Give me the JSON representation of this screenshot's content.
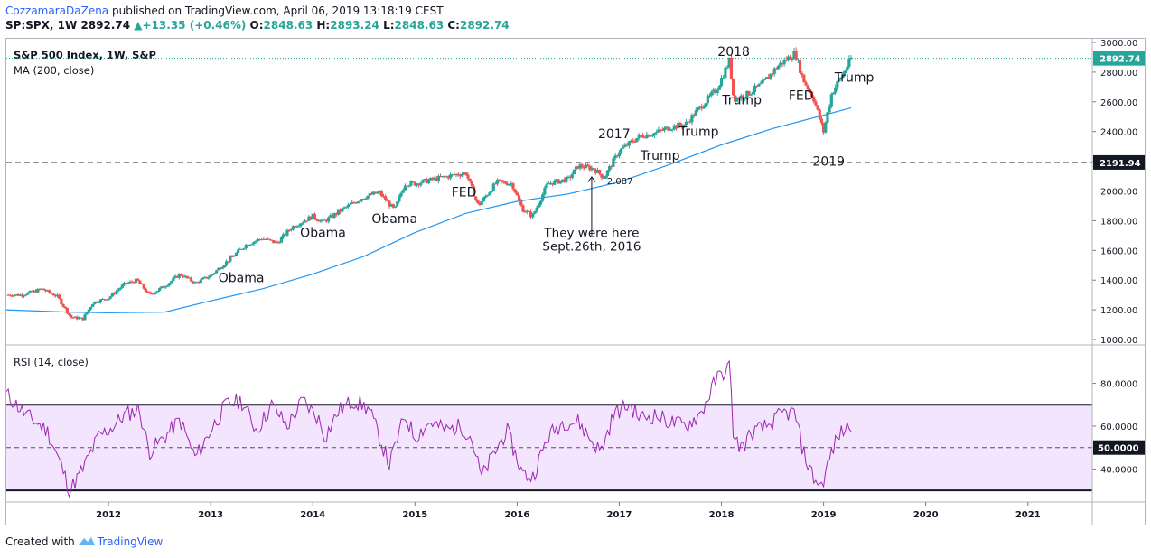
{
  "header": {
    "publisher": "CozzamaraDaZena",
    "published_text": "published on TradingView.com, April 06, 2019 13:18:19 CEST",
    "symbol": "SP:SPX, 1W",
    "last": "2892.74",
    "change_icon": "up-triangle-icon",
    "change": "+13.35 (+0.46%)",
    "o_label": "O:",
    "o": "2848.63",
    "h_label": "H:",
    "h": "2893.24",
    "l_label": "L:",
    "l": "2848.63",
    "c_label": "C:",
    "c": "2892.74"
  },
  "footer": {
    "created_with": "Created with",
    "brand": "TradingView",
    "logo_icon": "tradingview-logo-icon"
  },
  "colors": {
    "up": "#26a69a",
    "down": "#ef5350",
    "ma": "#2196f3",
    "rsi": "#9c27b0",
    "rsi_band": "#f3e5fd",
    "price_tag": "#26a69a",
    "line_tag": "#131722"
  },
  "chart_data": [
    {
      "type": "candlestick",
      "title": "S&P 500 Index, 1W, S&P",
      "indicator": "MA (200, close)",
      "ylim": [
        1000,
        3000
      ],
      "y_ticks": [
        "3000.00",
        "2800.00",
        "2600.00",
        "2400.00",
        "2200.00",
        "2000.00",
        "1800.00",
        "1600.00",
        "1400.00",
        "1200.00",
        "1000.00"
      ],
      "x_ticks": [
        "2012",
        "2013",
        "2014",
        "2015",
        "2016",
        "2017",
        "2018",
        "2019",
        "2020",
        "2021"
      ],
      "last_price_label": "2892.74",
      "horizontal_line_label": "2191.94",
      "close_series": [
        [
          2011.15,
          1300
        ],
        [
          2011.35,
          1340
        ],
        [
          2011.5,
          1290
        ],
        [
          2011.63,
          1150
        ],
        [
          2011.75,
          1140
        ],
        [
          2011.85,
          1250
        ],
        [
          2012.0,
          1280
        ],
        [
          2012.15,
          1370
        ],
        [
          2012.28,
          1400
        ],
        [
          2012.4,
          1300
        ],
        [
          2012.55,
          1360
        ],
        [
          2012.7,
          1440
        ],
        [
          2012.85,
          1380
        ],
        [
          2013.0,
          1430
        ],
        [
          2013.15,
          1520
        ],
        [
          2013.35,
          1640
        ],
        [
          2013.5,
          1680
        ],
        [
          2013.65,
          1650
        ],
        [
          2013.8,
          1760
        ],
        [
          2014.0,
          1830
        ],
        [
          2014.1,
          1790
        ],
        [
          2014.3,
          1880
        ],
        [
          2014.5,
          1960
        ],
        [
          2014.65,
          1990
        ],
        [
          2014.8,
          1870
        ],
        [
          2014.9,
          2050
        ],
        [
          2015.0,
          2050
        ],
        [
          2015.2,
          2080
        ],
        [
          2015.4,
          2110
        ],
        [
          2015.5,
          2120
        ],
        [
          2015.62,
          1900
        ],
        [
          2015.8,
          2060
        ],
        [
          2015.95,
          2050
        ],
        [
          2016.05,
          1880
        ],
        [
          2016.15,
          1830
        ],
        [
          2016.3,
          2050
        ],
        [
          2016.5,
          2080
        ],
        [
          2016.6,
          2170
        ],
        [
          2016.75,
          2150
        ],
        [
          2016.85,
          2090
        ],
        [
          2017.0,
          2270
        ],
        [
          2017.2,
          2370
        ],
        [
          2017.35,
          2390
        ],
        [
          2017.5,
          2430
        ],
        [
          2017.65,
          2450
        ],
        [
          2017.8,
          2570
        ],
        [
          2017.95,
          2680
        ],
        [
          2018.08,
          2880
        ],
        [
          2018.12,
          2620
        ],
        [
          2018.25,
          2650
        ],
        [
          2018.4,
          2720
        ],
        [
          2018.55,
          2840
        ],
        [
          2018.72,
          2930
        ],
        [
          2018.8,
          2750
        ],
        [
          2018.9,
          2630
        ],
        [
          2019.0,
          2400
        ],
        [
          2019.08,
          2660
        ],
        [
          2019.2,
          2800
        ],
        [
          2019.27,
          2892.74
        ]
      ],
      "ma_series": [
        [
          2011.0,
          1200
        ],
        [
          2011.6,
          1185
        ],
        [
          2012.0,
          1180
        ],
        [
          2012.55,
          1185
        ],
        [
          2013.0,
          1260
        ],
        [
          2013.5,
          1340
        ],
        [
          2014.0,
          1440
        ],
        [
          2014.5,
          1560
        ],
        [
          2015.0,
          1720
        ],
        [
          2015.5,
          1850
        ],
        [
          2016.0,
          1930
        ],
        [
          2016.5,
          1980
        ],
        [
          2017.0,
          2060
        ],
        [
          2017.5,
          2180
        ],
        [
          2018.0,
          2310
        ],
        [
          2018.5,
          2420
        ],
        [
          2019.0,
          2510
        ],
        [
          2019.27,
          2560
        ]
      ],
      "annotations": [
        {
          "text": "Obama",
          "x": 2013.3,
          "y": 1385
        },
        {
          "text": "Obama",
          "x": 2014.1,
          "y": 1690
        },
        {
          "text": "Obama",
          "x": 2014.8,
          "y": 1785
        },
        {
          "text": "FED",
          "x": 2015.48,
          "y": 1965
        },
        {
          "text": "2017",
          "x": 2016.95,
          "y": 2355
        },
        {
          "text": "Trump",
          "x": 2017.4,
          "y": 2210
        },
        {
          "text": "Trump",
          "x": 2017.78,
          "y": 2370
        },
        {
          "text": "2018",
          "x": 2018.12,
          "y": 2910
        },
        {
          "text": "Trump",
          "x": 2018.2,
          "y": 2585
        },
        {
          "text": "FED",
          "x": 2018.78,
          "y": 2615
        },
        {
          "text": "Trump",
          "x": 2019.3,
          "y": 2735
        },
        {
          "text": "2019",
          "x": 2019.05,
          "y": 2170
        }
      ],
      "point_label": {
        "text": "2.087",
        "x": 2016.88,
        "y": 2045
      },
      "note": {
        "lines": [
          "They were here",
          "Sept.26th, 2016"
        ],
        "x": 2016.73
      }
    },
    {
      "type": "line",
      "title": "RSI (14, close)",
      "ylim": [
        25,
        95
      ],
      "y_ticks": [
        "80.0000",
        "60.0000",
        "40.0000"
      ],
      "level_label": "50.0000",
      "levels": [
        30,
        50,
        70
      ],
      "series": [
        [
          2011.0,
          75
        ],
        [
          2011.2,
          65
        ],
        [
          2011.4,
          58
        ],
        [
          2011.55,
          40
        ],
        [
          2011.62,
          30
        ],
        [
          2011.75,
          40
        ],
        [
          2011.9,
          55
        ],
        [
          2012.05,
          60
        ],
        [
          2012.15,
          65
        ],
        [
          2012.3,
          68
        ],
        [
          2012.4,
          48
        ],
        [
          2012.55,
          55
        ],
        [
          2012.7,
          63
        ],
        [
          2012.85,
          45
        ],
        [
          2013.0,
          58
        ],
        [
          2013.15,
          70
        ],
        [
          2013.3,
          72
        ],
        [
          2013.45,
          58
        ],
        [
          2013.6,
          70
        ],
        [
          2013.75,
          60
        ],
        [
          2013.9,
          72
        ],
        [
          2014.05,
          64
        ],
        [
          2014.12,
          55
        ],
        [
          2014.25,
          67
        ],
        [
          2014.4,
          72
        ],
        [
          2014.55,
          68
        ],
        [
          2014.75,
          42
        ],
        [
          2014.9,
          65
        ],
        [
          2015.0,
          55
        ],
        [
          2015.15,
          62
        ],
        [
          2015.3,
          58
        ],
        [
          2015.45,
          60
        ],
        [
          2015.55,
          55
        ],
        [
          2015.65,
          36
        ],
        [
          2015.75,
          45
        ],
        [
          2015.9,
          58
        ],
        [
          2016.05,
          38
        ],
        [
          2016.15,
          36
        ],
        [
          2016.3,
          55
        ],
        [
          2016.45,
          62
        ],
        [
          2016.6,
          62
        ],
        [
          2016.7,
          55
        ],
        [
          2016.82,
          48
        ],
        [
          2016.95,
          66
        ],
        [
          2017.1,
          70
        ],
        [
          2017.2,
          64
        ],
        [
          2017.35,
          65
        ],
        [
          2017.5,
          62
        ],
        [
          2017.65,
          60
        ],
        [
          2017.8,
          66
        ],
        [
          2017.95,
          82
        ],
        [
          2018.08,
          88
        ],
        [
          2018.12,
          54
        ],
        [
          2018.2,
          50
        ],
        [
          2018.3,
          57
        ],
        [
          2018.45,
          60
        ],
        [
          2018.6,
          66
        ],
        [
          2018.72,
          66
        ],
        [
          2018.8,
          48
        ],
        [
          2018.9,
          36
        ],
        [
          2018.98,
          32
        ],
        [
          2019.08,
          48
        ],
        [
          2019.15,
          56
        ],
        [
          2019.27,
          61
        ]
      ]
    }
  ]
}
